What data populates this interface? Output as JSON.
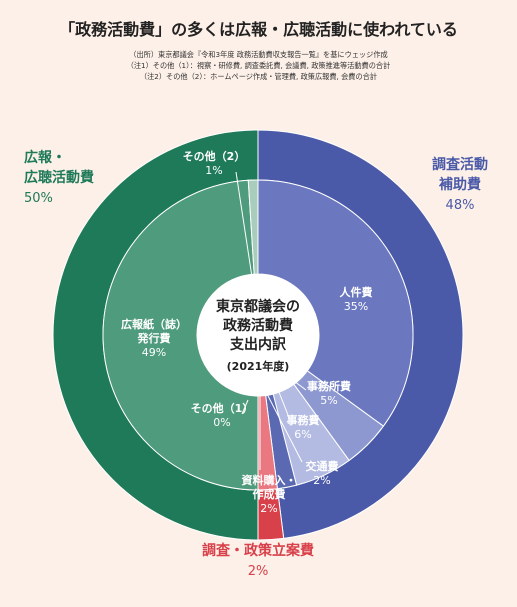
{
  "title": "「政務活動費」の多くは広報・広聴活動に使われている",
  "notes": [
    "（出所）東京都議会『令和3年度 政務活動費収支報告一覧』を基にウェッジ作成",
    "（注1）その他（1）：視察・研修費, 調査委託費, 会議費, 政策推進等活動費の合計",
    "（注2）その他（2）：ホームページ作成・管理費, 政策広報費, 会費の合計"
  ],
  "colors": {
    "blue_outer": "#4a5aa8",
    "blue_inner": "#6b78bf",
    "blue_light": "#8d98d0",
    "blue_pale": "#b3bbe2",
    "red": "#d8404a",
    "red_light": "#e97880",
    "green_outer": "#1f7a5a",
    "green_inner": "#4f9b7d",
    "green_pale": "#a9cdbd",
    "line": "#ffffff"
  },
  "chart_data": {
    "type": "pie",
    "title": "東京都議会の政務活動費支出内訳（2021年度）",
    "center": {
      "lines": [
        "東京都議会の",
        "政務活動費",
        "支出内訳"
      ],
      "year": "(2021年度)"
    },
    "outer": [
      {
        "name_lines": [
          "調査活動",
          "補助費"
        ],
        "value": 48,
        "value_label": "48%",
        "color": "#4a5aa8",
        "label_color": "#4a5aa8"
      },
      {
        "name_lines": [
          "調査・政策立案費"
        ],
        "value": 2,
        "value_label": "2%",
        "color": "#d8404a",
        "label_color": "#d8404a"
      },
      {
        "name_lines": [
          "広報・",
          "広聴活動費"
        ],
        "value": 50,
        "value_label": "50%",
        "color": "#1f7a5a",
        "label_color": "#1f7a5a"
      }
    ],
    "inner": [
      {
        "name_lines": [
          "人件費"
        ],
        "value": 35,
        "value_label": "35%",
        "color": "#6b78bf"
      },
      {
        "name_lines": [
          "事務所費"
        ],
        "value": 5,
        "value_label": "5%",
        "color": "#8d98d0"
      },
      {
        "name_lines": [
          "事務費"
        ],
        "value": 6,
        "value_label": "6%",
        "color": "#b3bbe2"
      },
      {
        "name_lines": [
          "交通費"
        ],
        "value": 2,
        "value_label": "2%",
        "color": "#5b69b3"
      },
      {
        "name_lines": [
          "資料購入・",
          "作成費"
        ],
        "value": 2,
        "value_label": "2%",
        "color": "#e97880"
      },
      {
        "name_lines": [
          "その他（1）"
        ],
        "value": 0,
        "value_label": "0%",
        "color": "#d8404a"
      },
      {
        "name_lines": [
          "広報紙（誌）",
          "発行費"
        ],
        "value": 49,
        "value_label": "49%",
        "color": "#4f9b7d"
      },
      {
        "name_lines": [
          "その他（2）"
        ],
        "value": 1,
        "value_label": "1%",
        "color": "#a9cdbd"
      }
    ]
  }
}
